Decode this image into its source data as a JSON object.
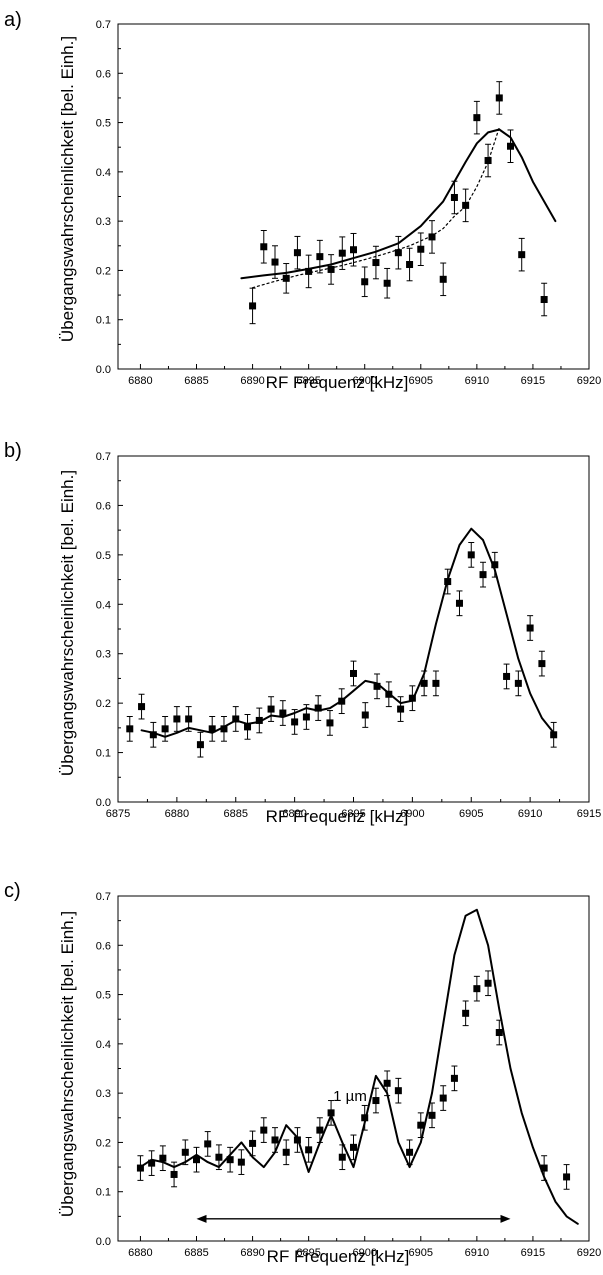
{
  "figure": {
    "panels": [
      {
        "label": "a)"
      },
      {
        "label": "b)"
      },
      {
        "label": "c)"
      }
    ]
  },
  "chart_data": [
    {
      "type": "scatter",
      "panel_label": "a)",
      "xlabel": "RF Frequenz [kHz]",
      "ylabel": "Übergangswahrscheinlichkeit [bel. Einh.]",
      "xlim": [
        6878,
        6920
      ],
      "ylim": [
        0.0,
        0.7
      ],
      "xticks": [
        6880,
        6885,
        6890,
        6895,
        6900,
        6905,
        6910,
        6915,
        6920
      ],
      "yticks": [
        0.0,
        0.1,
        0.2,
        0.3,
        0.4,
        0.5,
        0.6,
        0.7
      ],
      "grid": false,
      "series": [
        {
          "kind": "points_with_errorbars",
          "x": [
            6890,
            6891,
            6892,
            6893,
            6894,
            6895,
            6896,
            6897,
            6898,
            6899,
            6900,
            6901,
            6902,
            6903,
            6904,
            6905,
            6906,
            6907,
            6908,
            6909,
            6910,
            6911,
            6912,
            6913,
            6914,
            6916
          ],
          "y": [
            0.128,
            0.248,
            0.217,
            0.184,
            0.236,
            0.198,
            0.228,
            0.202,
            0.235,
            0.242,
            0.177,
            0.216,
            0.174,
            0.236,
            0.212,
            0.243,
            0.268,
            0.182,
            0.348,
            0.332,
            0.51,
            0.423,
            0.55,
            0.452,
            0.232,
            0.141
          ],
          "err": [
            0.036,
            0.033,
            0.033,
            0.03,
            0.033,
            0.033,
            0.033,
            0.03,
            0.033,
            0.033,
            0.03,
            0.033,
            0.03,
            0.033,
            0.033,
            0.033,
            0.033,
            0.033,
            0.033,
            0.033,
            0.033,
            0.033,
            0.033,
            0.033,
            0.033,
            0.033
          ]
        },
        {
          "kind": "solid_curve",
          "x": [
            6889,
            6891,
            6893,
            6895,
            6897,
            6899,
            6901,
            6903,
            6905,
            6907,
            6909,
            6910,
            6911,
            6912,
            6913,
            6914,
            6915,
            6916,
            6917
          ],
          "y": [
            0.184,
            0.19,
            0.195,
            0.203,
            0.212,
            0.225,
            0.238,
            0.255,
            0.29,
            0.34,
            0.42,
            0.458,
            0.48,
            0.486,
            0.47,
            0.43,
            0.38,
            0.34,
            0.3
          ]
        },
        {
          "kind": "dotted_curve",
          "x": [
            6890,
            6892,
            6894,
            6896,
            6898,
            6900,
            6902,
            6904,
            6906,
            6907,
            6908,
            6909,
            6910,
            6911,
            6912
          ],
          "y": [
            0.165,
            0.178,
            0.19,
            0.2,
            0.21,
            0.222,
            0.235,
            0.25,
            0.27,
            0.285,
            0.31,
            0.33,
            0.37,
            0.42,
            0.49
          ]
        }
      ]
    },
    {
      "type": "scatter",
      "panel_label": "b)",
      "xlabel": "RF Frequenz [kHz]",
      "ylabel": "Übergangswahrscheinlichkeit [bel. Einh.]",
      "xlim": [
        6875,
        6915
      ],
      "ylim": [
        0.0,
        0.7
      ],
      "xticks": [
        6875,
        6880,
        6885,
        6890,
        6895,
        6900,
        6905,
        6910,
        6915
      ],
      "yticks": [
        0.0,
        0.1,
        0.2,
        0.3,
        0.4,
        0.5,
        0.6,
        0.7
      ],
      "grid": false,
      "series": [
        {
          "kind": "points_with_errorbars",
          "x": [
            6876,
            6877,
            6878,
            6879,
            6880,
            6881,
            6882,
            6883,
            6884,
            6885,
            6886,
            6887,
            6888,
            6889,
            6890,
            6891,
            6892,
            6893,
            6894,
            6895,
            6896,
            6897,
            6898,
            6899,
            6900,
            6901,
            6902,
            6903,
            6904,
            6905,
            6906,
            6907,
            6908,
            6909,
            6910,
            6911,
            6912
          ],
          "y": [
            0.148,
            0.193,
            0.136,
            0.148,
            0.168,
            0.168,
            0.116,
            0.148,
            0.148,
            0.168,
            0.152,
            0.165,
            0.188,
            0.18,
            0.162,
            0.172,
            0.19,
            0.16,
            0.204,
            0.26,
            0.176,
            0.234,
            0.218,
            0.188,
            0.21,
            0.24,
            0.24,
            0.446,
            0.402,
            0.5,
            0.46,
            0.48,
            0.254,
            0.24,
            0.352,
            0.28,
            0.136
          ],
          "err": [
            0.025,
            0.025,
            0.025,
            0.025,
            0.025,
            0.025,
            0.025,
            0.025,
            0.025,
            0.025,
            0.025,
            0.025,
            0.025,
            0.025,
            0.025,
            0.025,
            0.025,
            0.025,
            0.025,
            0.025,
            0.025,
            0.025,
            0.025,
            0.025,
            0.025,
            0.025,
            0.025,
            0.025,
            0.025,
            0.025,
            0.025,
            0.025,
            0.025,
            0.025,
            0.025,
            0.025,
            0.025
          ]
        },
        {
          "kind": "solid_curve",
          "x": [
            6877,
            6878,
            6879,
            6880,
            6881,
            6882,
            6883,
            6884,
            6885,
            6886,
            6887,
            6888,
            6889,
            6890,
            6891,
            6892,
            6893,
            6894,
            6895,
            6896,
            6897,
            6898,
            6899,
            6900,
            6901,
            6902,
            6903,
            6904,
            6905,
            6906,
            6907,
            6908,
            6909,
            6910,
            6911,
            6912
          ],
          "y": [
            0.145,
            0.14,
            0.132,
            0.14,
            0.15,
            0.145,
            0.14,
            0.152,
            0.165,
            0.158,
            0.162,
            0.175,
            0.172,
            0.18,
            0.19,
            0.185,
            0.19,
            0.205,
            0.225,
            0.245,
            0.24,
            0.22,
            0.2,
            0.205,
            0.26,
            0.36,
            0.45,
            0.52,
            0.553,
            0.53,
            0.47,
            0.38,
            0.29,
            0.22,
            0.17,
            0.14
          ]
        }
      ]
    },
    {
      "type": "scatter",
      "panel_label": "c)",
      "xlabel": "RF Frequenz [kHz]",
      "ylabel": "Übergangswahrscheinlichkeit [bel. Einh.]",
      "xlim": [
        6878,
        6920
      ],
      "ylim": [
        0.0,
        0.7
      ],
      "xticks": [
        6880,
        6885,
        6890,
        6895,
        6900,
        6905,
        6910,
        6915,
        6920
      ],
      "yticks": [
        0.0,
        0.1,
        0.2,
        0.3,
        0.4,
        0.5,
        0.6,
        0.7
      ],
      "grid": false,
      "annotations": [
        {
          "text": "1 µm",
          "x_from": 6885,
          "x_to": 6913,
          "y": 0.045
        }
      ],
      "series": [
        {
          "kind": "points_with_errorbars",
          "x": [
            6880,
            6881,
            6882,
            6883,
            6884,
            6885,
            6886,
            6887,
            6888,
            6889,
            6890,
            6891,
            6892,
            6893,
            6894,
            6895,
            6896,
            6897,
            6898,
            6899,
            6900,
            6901,
            6902,
            6903,
            6904,
            6905,
            6906,
            6907,
            6908,
            6909,
            6910,
            6911,
            6912,
            6916,
            6918
          ],
          "y": [
            0.148,
            0.158,
            0.168,
            0.135,
            0.18,
            0.165,
            0.197,
            0.17,
            0.165,
            0.16,
            0.198,
            0.225,
            0.205,
            0.18,
            0.205,
            0.185,
            0.225,
            0.26,
            0.17,
            0.19,
            0.25,
            0.285,
            0.32,
            0.305,
            0.18,
            0.235,
            0.255,
            0.29,
            0.33,
            0.462,
            0.512,
            0.523,
            0.423,
            0.148,
            0.13
          ],
          "err": [
            0.025,
            0.025,
            0.025,
            0.025,
            0.025,
            0.025,
            0.025,
            0.025,
            0.025,
            0.025,
            0.025,
            0.025,
            0.025,
            0.025,
            0.025,
            0.025,
            0.025,
            0.025,
            0.025,
            0.025,
            0.025,
            0.025,
            0.025,
            0.025,
            0.025,
            0.025,
            0.025,
            0.025,
            0.025,
            0.025,
            0.025,
            0.025,
            0.025,
            0.025,
            0.025
          ]
        },
        {
          "kind": "solid_curve",
          "x": [
            6880,
            6881,
            6882,
            6883,
            6884,
            6885,
            6886,
            6887,
            6888,
            6889,
            6890,
            6891,
            6892,
            6893,
            6894,
            6895,
            6896,
            6897,
            6898,
            6899,
            6900,
            6901,
            6902,
            6903,
            6904,
            6905,
            6906,
            6907,
            6908,
            6909,
            6910,
            6911,
            6912,
            6913,
            6914,
            6915,
            6916,
            6917,
            6918,
            6919
          ],
          "y": [
            0.15,
            0.165,
            0.16,
            0.15,
            0.16,
            0.175,
            0.16,
            0.15,
            0.175,
            0.2,
            0.17,
            0.15,
            0.18,
            0.235,
            0.21,
            0.14,
            0.2,
            0.255,
            0.2,
            0.15,
            0.24,
            0.335,
            0.3,
            0.2,
            0.15,
            0.2,
            0.3,
            0.44,
            0.58,
            0.66,
            0.672,
            0.6,
            0.47,
            0.35,
            0.26,
            0.19,
            0.13,
            0.08,
            0.05,
            0.035
          ]
        }
      ]
    }
  ]
}
